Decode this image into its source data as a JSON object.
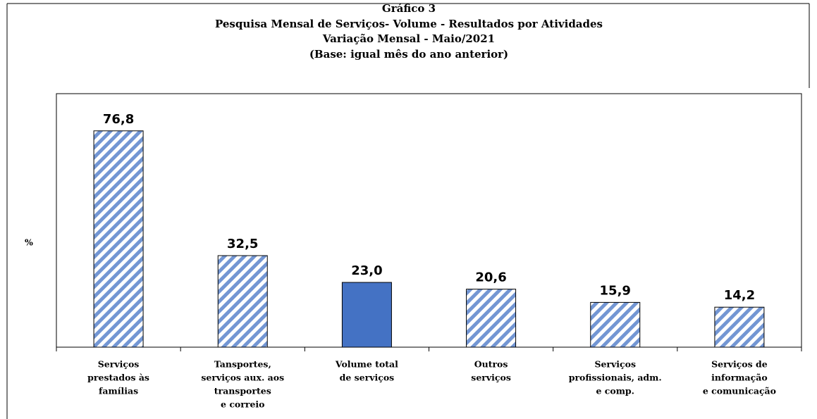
{
  "chart_data": {
    "type": "bar",
    "title": "Gráfico 3",
    "subtitle": [
      "Pesquisa  Mensal de Serviços- Volume - Resultados por Atividades",
      "Variação Mensal - Maio/2021",
      "(Base: igual mês do ano anterior)"
    ],
    "y_label": "%",
    "categories": [
      [
        "Serviços",
        "prestados às",
        "famílias"
      ],
      [
        "Tansportes,",
        "serviços aux. aos",
        "transportes",
        "e correio"
      ],
      [
        "Volume total",
        "de serviços"
      ],
      [
        "Outros",
        "serviços"
      ],
      [
        "Serviços",
        "profissionais, adm.",
        "e comp."
      ],
      [
        "Serviços de",
        "informação",
        "e comunicação"
      ]
    ],
    "values": [
      76.8,
      32.5,
      23.0,
      20.6,
      15.9,
      14.2
    ],
    "value_labels": [
      "76,8",
      "32,5",
      "23,0",
      "20,6",
      "15,9",
      "14,2"
    ],
    "color": "#4472c4",
    "hatched": [
      true,
      true,
      false,
      true,
      true,
      true
    ],
    "ylim": [
      0,
      90
    ]
  }
}
